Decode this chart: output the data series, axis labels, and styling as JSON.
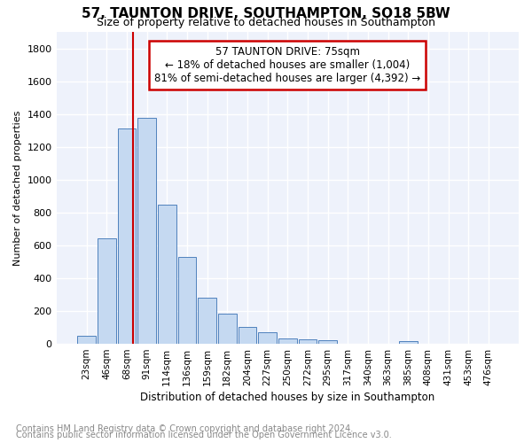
{
  "title": "57, TAUNTON DRIVE, SOUTHAMPTON, SO18 5BW",
  "subtitle": "Size of property relative to detached houses in Southampton",
  "xlabel": "Distribution of detached houses by size in Southampton",
  "ylabel": "Number of detached properties",
  "footnote1": "Contains HM Land Registry data © Crown copyright and database right 2024.",
  "footnote2": "Contains public sector information licensed under the Open Government Licence v3.0.",
  "bar_labels": [
    "23sqm",
    "46sqm",
    "68sqm",
    "91sqm",
    "114sqm",
    "136sqm",
    "159sqm",
    "182sqm",
    "204sqm",
    "227sqm",
    "250sqm",
    "272sqm",
    "295sqm",
    "317sqm",
    "340sqm",
    "363sqm",
    "385sqm",
    "408sqm",
    "431sqm",
    "453sqm",
    "476sqm"
  ],
  "bar_values": [
    50,
    645,
    1310,
    1375,
    850,
    530,
    280,
    185,
    105,
    70,
    35,
    25,
    20,
    0,
    0,
    0,
    15,
    0,
    0,
    0,
    0
  ],
  "bar_color": "#c5d9f1",
  "bar_edge_color": "#4f81bd",
  "annotation_title": "57 TAUNTON DRIVE: 75sqm",
  "annotation_line1": "← 18% of detached houses are smaller (1,004)",
  "annotation_line2": "81% of semi-detached houses are larger (4,392) →",
  "annotation_box_color": "#ffffff",
  "annotation_box_edge": "#cc0000",
  "vline_color": "#cc0000",
  "vline_x_index": 2.3,
  "ylim": [
    0,
    1900
  ],
  "yticks": [
    0,
    200,
    400,
    600,
    800,
    1000,
    1200,
    1400,
    1600,
    1800
  ],
  "bg_color": "#ffffff",
  "plot_bg_color": "#eef2fb",
  "grid_color": "#ffffff",
  "title_fontsize": 11,
  "subtitle_fontsize": 9,
  "axis_fontsize": 8,
  "xtick_fontsize": 7.5,
  "footnote_fontsize": 7
}
